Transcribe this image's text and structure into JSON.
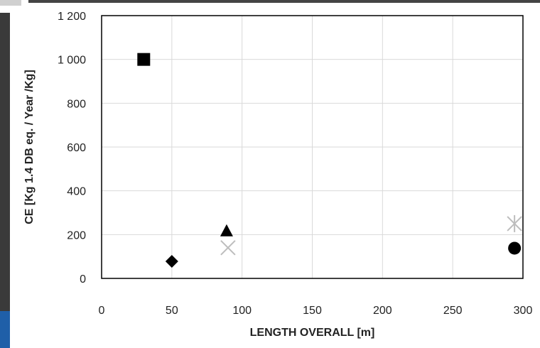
{
  "chart_data": {
    "type": "scatter",
    "title": "",
    "xlabel": "LENGTH OVERALL [m]",
    "ylabel": "CE [Kg 1.4 DB eq. / Year /Kg]",
    "xlim": [
      0,
      300
    ],
    "ylim": [
      0,
      1200
    ],
    "x_ticks": [
      0,
      50,
      100,
      150,
      200,
      250,
      300
    ],
    "y_ticks": [
      0,
      200,
      400,
      600,
      800,
      1000,
      1200
    ],
    "x_tick_labels": [
      "0",
      "50",
      "100",
      "150",
      "200",
      "250",
      "300"
    ],
    "y_tick_labels": [
      "0",
      "200",
      "400",
      "600",
      "800",
      "1 000",
      "1 200"
    ],
    "grid": true,
    "legend": "none",
    "points": [
      {
        "x": 30,
        "y": 1000,
        "marker": "square",
        "color": "#000000"
      },
      {
        "x": 50,
        "y": 78,
        "marker": "diamond",
        "color": "#000000"
      },
      {
        "x": 89,
        "y": 215,
        "marker": "triangle",
        "color": "#000000"
      },
      {
        "x": 90,
        "y": 140,
        "marker": "x",
        "color": "#bdbdbd"
      },
      {
        "x": 294,
        "y": 250,
        "marker": "star",
        "color": "#bdbdbd"
      },
      {
        "x": 294,
        "y": 138,
        "marker": "circle",
        "color": "#000000"
      }
    ]
  }
}
